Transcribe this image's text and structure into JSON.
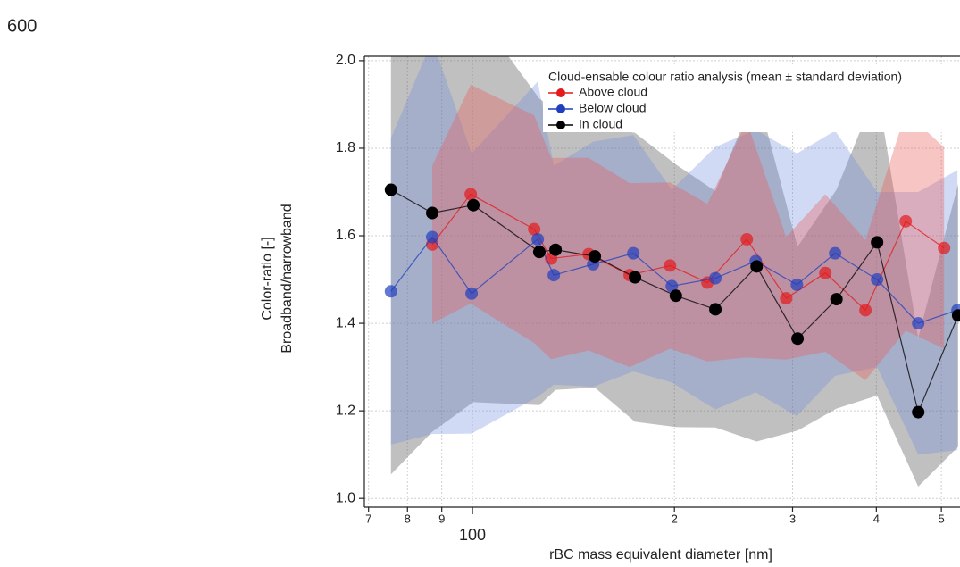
{
  "chart_data": {
    "type": "line",
    "annotation": "600",
    "legend_title": "Cloud-ensable colour ratio analysis (mean ± standard deviation)",
    "x_label": "rBC mass equivalent diameter [nm]",
    "y_label": [
      "Color-ratio [-]",
      "Broadband/narrowband"
    ],
    "xscale": "log",
    "grid": true,
    "legend": "upper right",
    "xlim": [
      69,
      533
    ],
    "ylim": [
      0.98,
      2.01
    ],
    "xticks": [
      {
        "value": 70,
        "label": "7"
      },
      {
        "value": 80,
        "label": "8"
      },
      {
        "value": 90,
        "label": "9"
      },
      100,
      {
        "value": 200,
        "label": "2"
      },
      {
        "value": 300,
        "label": "3"
      },
      {
        "value": 400,
        "label": "4"
      },
      {
        "value": 500,
        "label": "5"
      }
    ],
    "yticks": [
      {
        "value": 1,
        "label": "1.0"
      },
      1.2,
      1.4,
      1.6,
      1.8,
      {
        "value": 2,
        "label": "2.0"
      }
    ],
    "series": [
      {
        "name": "Above cloud",
        "color": "#e41a1c",
        "band_color": "rgba(235,90,90,0.35)",
        "x": [
          87.1,
          99.4,
          123.6,
          131.0,
          149.0,
          171.5,
          197.0,
          224.0,
          256.4,
          293.5,
          335.7,
          385.3,
          442.4,
          504.7
        ],
        "values": [
          1.58,
          1.695,
          1.615,
          1.548,
          1.558,
          1.51,
          1.532,
          1.493,
          1.592,
          1.457,
          1.515,
          1.43,
          1.633,
          1.572
        ],
        "std": [
          0.18,
          0.25,
          0.26,
          0.23,
          0.22,
          0.21,
          0.19,
          0.18,
          0.27,
          0.14,
          0.18,
          0.16,
          0.25,
          0.23
        ]
      },
      {
        "name": "Below cloud",
        "color": "#1f3fbf",
        "band_color": "rgba(110,140,225,0.32)",
        "x": [
          75.6,
          87.1,
          99.7,
          125.1,
          132.2,
          151.3,
          173.7,
          198.2,
          230.2,
          264.4,
          304.5,
          347.2,
          401.0,
          461.8,
          528.4
        ],
        "values": [
          1.473,
          1.597,
          1.468,
          1.592,
          1.51,
          1.535,
          1.56,
          1.485,
          1.503,
          1.542,
          1.488,
          1.56,
          1.5,
          1.4,
          1.43
        ],
        "std": [
          0.35,
          0.45,
          0.32,
          0.36,
          0.25,
          0.28,
          0.27,
          0.22,
          0.3,
          0.3,
          0.3,
          0.28,
          0.2,
          0.3,
          0.32
        ]
      },
      {
        "name": "In cloud",
        "color": "#000000",
        "band_color": "rgba(90,90,90,0.38)",
        "x": [
          75.6,
          87.1,
          100.3,
          125.8,
          133.0,
          152.2,
          174.7,
          201.0,
          230.2,
          265.2,
          305.2,
          348.8,
          401.0,
          461.8,
          529.6
        ],
        "values": [
          1.705,
          1.652,
          1.67,
          1.563,
          1.568,
          1.553,
          1.505,
          1.463,
          1.432,
          1.53,
          1.365,
          1.455,
          1.585,
          1.197,
          1.418
        ],
        "std": [
          0.65,
          0.5,
          0.45,
          0.35,
          0.32,
          0.3,
          0.33,
          0.3,
          0.27,
          0.4,
          0.21,
          0.25,
          0.35,
          0.17,
          0.3
        ]
      }
    ]
  }
}
